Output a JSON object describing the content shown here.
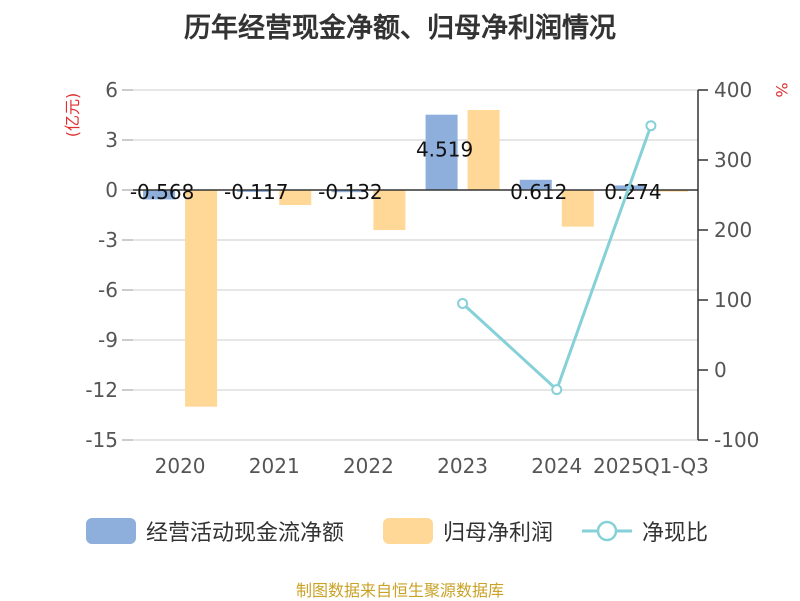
{
  "colors": {
    "cash": "#8eaedc",
    "profit": "#ffd797",
    "ratio": "#86d1d8",
    "axis_title_red": "#e03030",
    "source": "#c9a227"
  },
  "chart_data": {
    "type": "bar",
    "title": "历年经营现金净额、归母净利润情况",
    "categories": [
      "2020",
      "2021",
      "2022",
      "2023",
      "2024",
      "2025Q1-Q3"
    ],
    "series": [
      {
        "name": "经营活动现金流净额",
        "type": "bar",
        "axis": "left",
        "values": [
          -0.568,
          -0.117,
          -0.132,
          4.519,
          0.612,
          0.274
        ],
        "labels": [
          "-0.568",
          "-0.117",
          "-0.132",
          "4.519",
          "0.612",
          "0.274"
        ]
      },
      {
        "name": "归母净利润",
        "type": "bar",
        "axis": "left",
        "values": [
          -13.0,
          -0.9,
          -2.4,
          4.8,
          -2.2,
          -0.1
        ]
      },
      {
        "name": "净现比",
        "type": "line",
        "axis": "right",
        "values": [
          null,
          null,
          null,
          95,
          -28,
          349
        ]
      }
    ],
    "left_axis": {
      "label": "(亿元)",
      "ticks": [
        6,
        3,
        0,
        -3,
        -6,
        -9,
        -12,
        -15
      ],
      "ylim": [
        -15,
        6
      ]
    },
    "right_axis": {
      "label": "%",
      "ticks": [
        400,
        300,
        200,
        100,
        0,
        -100
      ],
      "ylim": [
        -100,
        400
      ]
    }
  },
  "legend": [
    {
      "name": "经营活动现金流净额"
    },
    {
      "name": "归母净利润"
    },
    {
      "name": "净现比"
    }
  ],
  "source": "制图数据来自恒生聚源数据库"
}
